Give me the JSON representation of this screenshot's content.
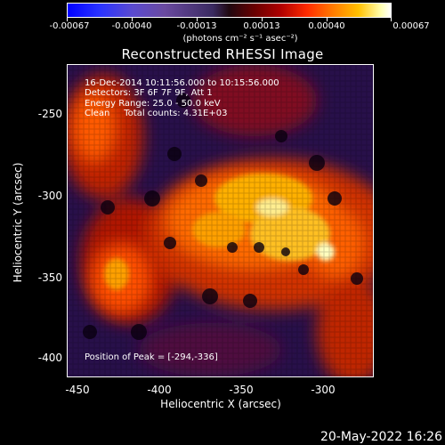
{
  "colorbar": {
    "ticks": [
      "-0.00067",
      "-0.00040",
      "-0.00013",
      "0.00013",
      "0.00040",
      "0.00067"
    ],
    "units": "(photons cm⁻² s⁻¹ asec⁻²)"
  },
  "title": "Reconstructed RHESSI Image",
  "info": {
    "time": "16-Dec-2014 10:11:56.000 to 10:15:56.000",
    "detectors": "Detectors: 3F 6F 7F 9F, Att 1",
    "energy": "Energy Range: 25.0 - 50.0 keV",
    "clean": "Clean     Total counts: 4.31E+03"
  },
  "peak_label": "Position of Peak = [-294,-336]",
  "axes": {
    "xlabel": "Heliocentric X (arcsec)",
    "ylabel": "Heliocentric Y (arcsec)",
    "xticks": [
      "-450",
      "-400",
      "-350",
      "-300"
    ],
    "yticks": [
      "-250",
      "-300",
      "-350",
      "-400"
    ]
  },
  "timestamp": "20-May-2022 16:26"
}
